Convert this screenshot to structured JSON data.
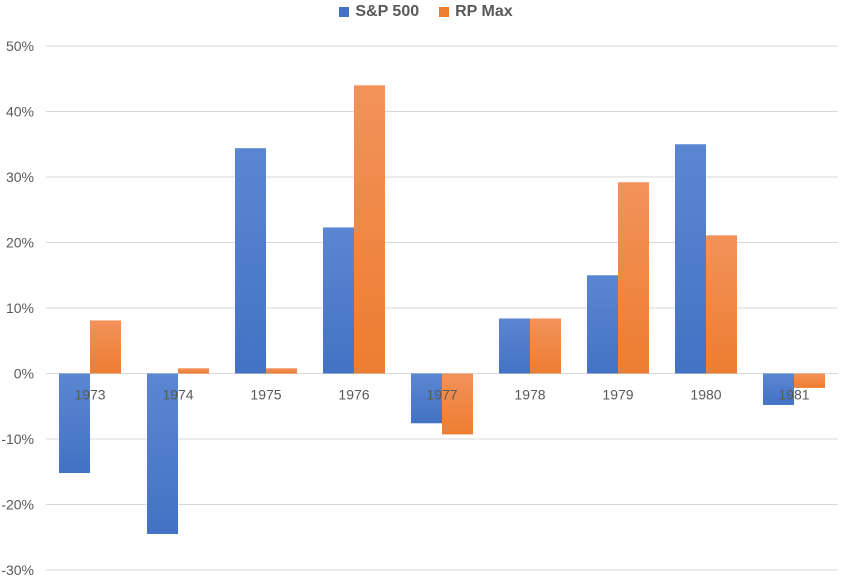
{
  "chart_data": {
    "type": "bar",
    "title": "",
    "xlabel": "",
    "ylabel": "",
    "categories": [
      "1973",
      "1974",
      "1975",
      "1976",
      "1977",
      "1978",
      "1979",
      "1980",
      "1981"
    ],
    "series": [
      {
        "name": "S&P 500",
        "color": "#4472C4",
        "values": [
          -15.2,
          -24.5,
          34.4,
          22.3,
          -7.6,
          8.4,
          15.0,
          35.0,
          -4.8
        ]
      },
      {
        "name": "RP Max",
        "color": "#ED7D31",
        "values": [
          8.1,
          0.8,
          0.8,
          44.0,
          -9.3,
          8.4,
          29.2,
          21.1,
          -2.2
        ]
      }
    ],
    "ylim": [
      -30,
      50
    ],
    "yticks": [
      -30,
      -20,
      -10,
      0,
      10,
      20,
      30,
      40,
      50
    ],
    "ytick_format": "percent",
    "grid": true,
    "legend_position": "top-center",
    "gridline_color": "#d9d9d9",
    "text_color": "#595959"
  }
}
